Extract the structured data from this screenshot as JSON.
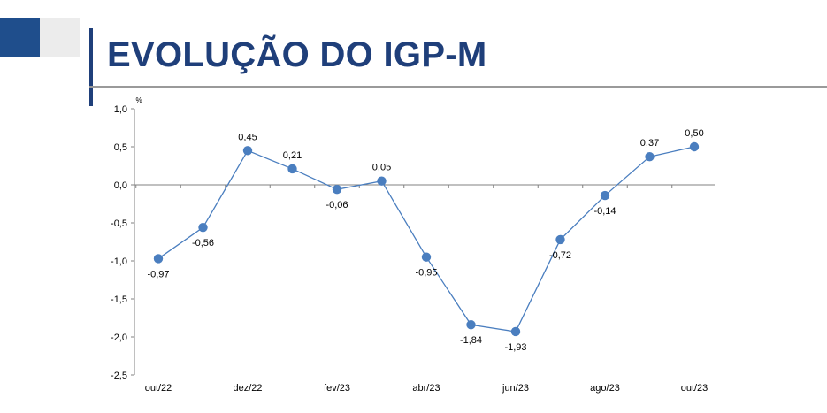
{
  "header": {
    "title": "EVOLUÇÃO DO IGP-M",
    "accent_color": "#1f4e8c",
    "title_color": "#1f3f7a"
  },
  "chart_data": {
    "type": "line",
    "title": "EVOLUÇÃO DO IGP-M",
    "ylabel": "%",
    "xlabel": "",
    "ylim": [
      -2.5,
      1.0
    ],
    "y_ticks": [
      1.0,
      0.5,
      0.0,
      -0.5,
      -1.0,
      -1.5,
      -2.0,
      -2.5
    ],
    "y_tick_labels": [
      "1,0",
      "0,5",
      "0,0",
      "-0,5",
      "-1,0",
      "-1,5",
      "-2,0",
      "-2,5"
    ],
    "x_tick_labels": [
      "out/22",
      "",
      "dez/22",
      "",
      "fev/23",
      "",
      "abr/23",
      "",
      "jun/23",
      "",
      "ago/23",
      "",
      "out/23"
    ],
    "categories": [
      "out/22",
      "nov/22",
      "dez/22",
      "jan/23",
      "fev/23",
      "mar/23",
      "abr/23",
      "mai/23",
      "jun/23",
      "jul/23",
      "ago/23",
      "set/23",
      "out/23"
    ],
    "series": [
      {
        "values": [
          -0.97,
          -0.56,
          0.45,
          0.21,
          -0.06,
          0.05,
          -0.95,
          -1.84,
          -1.93,
          -0.72,
          -0.14,
          0.37,
          0.5
        ],
        "labels": [
          "-0,97",
          "-0,56",
          "0,45",
          "0,21",
          "-0,06",
          "0,05",
          "-0,95",
          "-1,84",
          "-1,93",
          "-0,72",
          "-0,14",
          "0,37",
          "0,50"
        ],
        "label_position": [
          "below",
          "below",
          "above",
          "above",
          "below",
          "above",
          "below",
          "below",
          "below",
          "below",
          "below",
          "above",
          "above"
        ]
      }
    ],
    "line_color": "#4a7ebf",
    "marker_color": "#4a7ebf",
    "grid": false,
    "legend": "none"
  }
}
